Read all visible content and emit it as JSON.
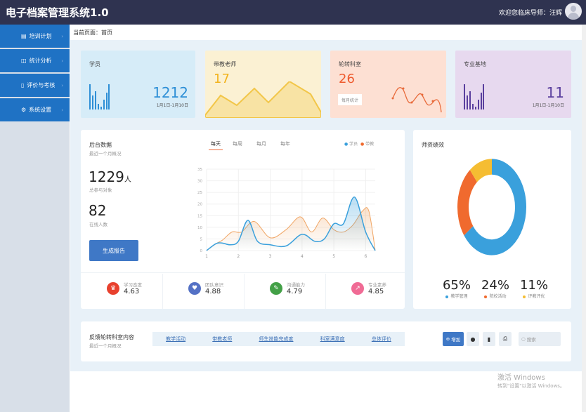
{
  "header": {
    "title": "电子档案管理系统1.0",
    "welcome": "欢迎您临床导师：汪辉"
  },
  "sidebar": {
    "items": [
      {
        "label": "培训计划",
        "icon": "document-icon"
      },
      {
        "label": "统计分析",
        "icon": "chart-icon"
      },
      {
        "label": "评价与考核",
        "icon": "clipboard-icon"
      },
      {
        "label": "系统设置",
        "icon": "gear-icon"
      }
    ]
  },
  "breadcrumb": "当前页面：首页",
  "cards": [
    {
      "label": "学员",
      "value": "1212",
      "date": "1月1日-1月10日",
      "color": "#2e8fd6",
      "bg": "#d6ecf8"
    },
    {
      "label": "带教老师",
      "value": "17",
      "color": "#f2b31c",
      "bg": "#fbf1d3"
    },
    {
      "label": "轮转科室",
      "value": "26",
      "button": "每月统计",
      "color": "#ee5a2e",
      "bg": "#fde0d3"
    },
    {
      "label": "专业基地",
      "value": "11",
      "date": "1月1日-1月10日",
      "color": "#5a3f9e",
      "bg": "#e7d9ef"
    }
  ],
  "backend": {
    "title": "后台数据",
    "subtitle": "最近一个月概况",
    "total": "1229",
    "total_unit": "人",
    "total_label": "总参与对象",
    "online": "82",
    "online_label": "在线人数",
    "report_button": "生成报告",
    "tabs": [
      "每天",
      "每周",
      "每月",
      "每年"
    ],
    "active_tab": "每天"
  },
  "chart_data": {
    "type": "area",
    "legend": [
      "学员",
      "带教"
    ],
    "legend_placement": "top-right",
    "xlim": [
      1,
      6.3
    ],
    "ylim": [
      0,
      35
    ],
    "xticks": [
      "1",
      "2",
      "3",
      "4",
      "5",
      "6"
    ],
    "yticks": [
      "0",
      "5",
      "10",
      "15",
      "20",
      "25",
      "30",
      "35"
    ],
    "series": [
      {
        "name": "学员",
        "color": "#3aa0dc",
        "x": [
          1,
          1.3,
          1.5,
          1.75,
          2,
          2.3,
          2.6,
          3,
          3.5,
          4,
          4.4,
          4.7,
          5,
          5.3,
          5.65,
          6,
          6.3
        ],
        "y": [
          0,
          3,
          3.2,
          2.5,
          4,
          13,
          4,
          2.5,
          2,
          7,
          4,
          5,
          11.5,
          11.5,
          23,
          8,
          0
        ]
      },
      {
        "name": "带教",
        "color": "#f0a564",
        "x": [
          1,
          1.3,
          1.5,
          1.8,
          2.1,
          2.5,
          3,
          3.5,
          3.95,
          4.3,
          4.65,
          5,
          5.3,
          5.6,
          5.9,
          6.1,
          6.3
        ],
        "y": [
          0,
          3,
          4.5,
          8,
          8,
          12.5,
          5.5,
          9,
          14.5,
          8,
          14,
          9,
          8,
          11,
          17,
          17,
          0
        ]
      }
    ]
  },
  "stats": [
    {
      "label": "学习态度",
      "value": "4.63",
      "icon": "crown-icon",
      "color": "#e8412e"
    },
    {
      "label": "团队意识",
      "value": "4.88",
      "icon": "heart-icon",
      "color": "#5471c5"
    },
    {
      "label": "沟通能力",
      "value": "4.79",
      "icon": "pen-icon",
      "color": "#43a047"
    },
    {
      "label": "专业素养",
      "value": "4.85",
      "icon": "trend-icon",
      "color": "#f06b95"
    }
  ],
  "performance": {
    "title": "师资绩效",
    "slices": [
      {
        "label": "教学管理",
        "value": 65,
        "pct": "65%",
        "color": "#3aa0dc"
      },
      {
        "label": "院校活动",
        "value": 24,
        "pct": "24%",
        "color": "#f06a2e"
      },
      {
        "label": "评教评优",
        "value": 11,
        "pct": "11%",
        "color": "#f5bd32"
      }
    ]
  },
  "feedback": {
    "title": "反馈轮转科室内容",
    "subtitle": "最近一个月概况",
    "tabs": [
      "教学活动",
      "带教老师",
      "师生技能完成度",
      "科室满意度",
      "总体评价"
    ],
    "add_button": "增加",
    "search_placeholder": "搜索"
  },
  "watermark": {
    "line1": "激活 Windows",
    "line2": "转到\"设置\"以激活 Windows。"
  }
}
